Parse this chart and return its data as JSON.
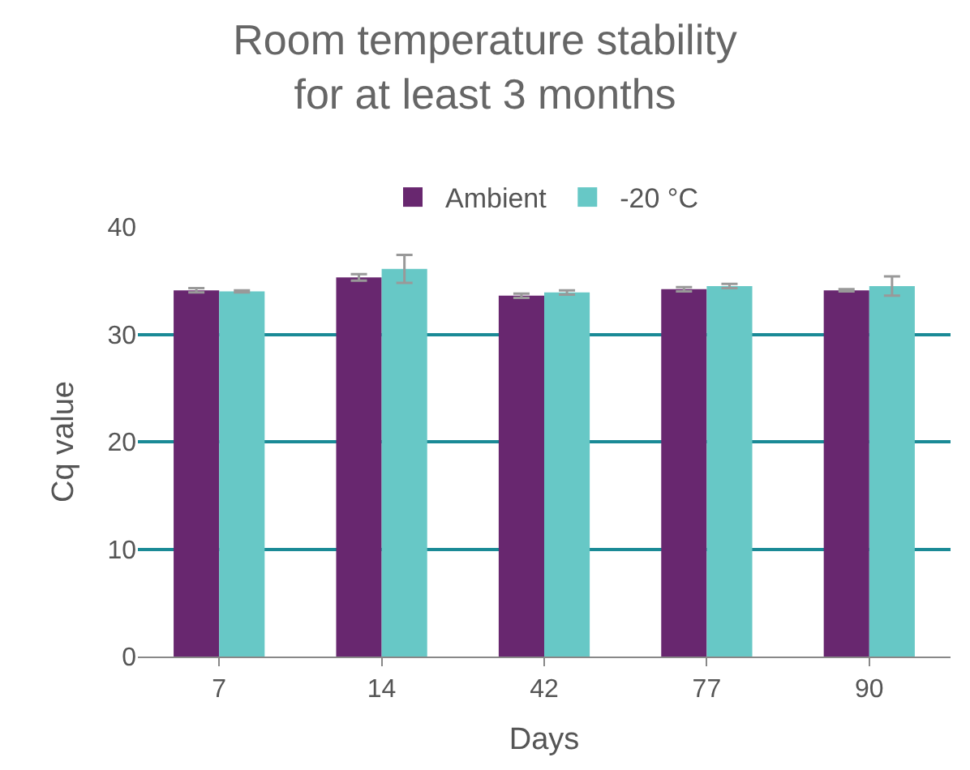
{
  "chart_data": {
    "type": "bar",
    "title": "Room temperature stability\nfor at least 3 months",
    "xlabel": "Days",
    "ylabel": "Cq value",
    "categories": [
      "7",
      "14",
      "42",
      "77",
      "90"
    ],
    "series": [
      {
        "name": "Ambient",
        "color": "#68276f",
        "values": [
          34.1,
          35.3,
          33.6,
          34.2,
          34.1
        ],
        "errors": [
          0.2,
          0.3,
          0.2,
          0.2,
          0.1
        ]
      },
      {
        "name": "-20 °C",
        "color": "#67c8c6",
        "values": [
          34.0,
          36.1,
          33.9,
          34.5,
          34.5
        ],
        "errors": [
          0.1,
          1.3,
          0.2,
          0.2,
          0.9
        ]
      }
    ],
    "ylim": [
      0,
      40
    ],
    "yticks": [
      0,
      10,
      20,
      30,
      40
    ],
    "grid": "y",
    "legend": "top"
  }
}
